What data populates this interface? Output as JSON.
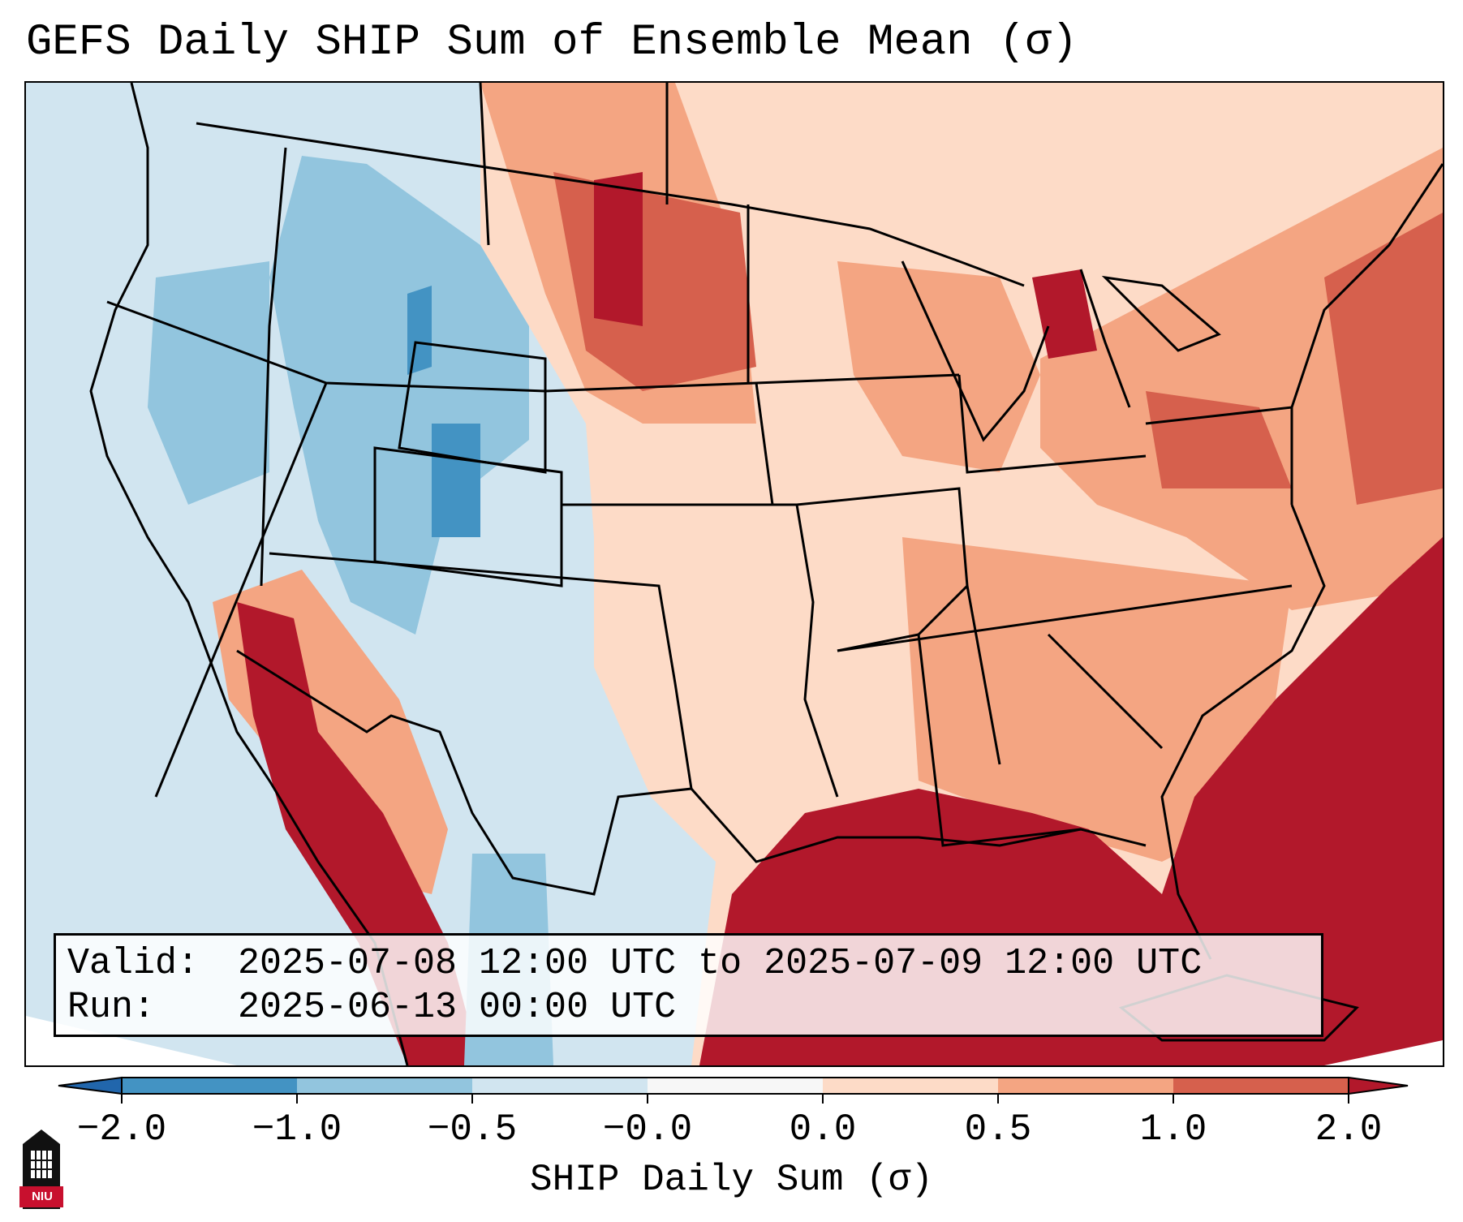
{
  "title": "GEFS Daily SHIP Sum of Ensemble Mean (σ)",
  "info": {
    "valid_label": "Valid:",
    "valid_value": "2025-07-08 12:00 UTC to 2025-07-09 12:00 UTC",
    "run_label": "Run:",
    "run_value": "2025-06-13 00:00 UTC"
  },
  "colorbar": {
    "label": "SHIP Daily Sum (σ)",
    "ticks": [
      "−2.0",
      "−1.0",
      "−0.5",
      "−0.0",
      "0.0",
      "0.5",
      "1.0",
      "2.0"
    ],
    "colors": [
      "#4393c3",
      "#92c5de",
      "#d1e5f0",
      "#f7f7f7",
      "#fddbc7",
      "#f4a582",
      "#d6604d",
      "#b2182b"
    ],
    "extend": "both"
  },
  "map": {
    "projection": "Lambert conformal (CONUS)",
    "field": "SHIP daily sum anomaly",
    "regions": [
      {
        "name": "Northwest",
        "category": "-0.5 to -0.0"
      },
      {
        "name": "Idaho / Utah / Colorado",
        "category": "-1.0 to -0.5"
      },
      {
        "name": "Texas / Southwest",
        "category": "-0.5 to -0.0"
      },
      {
        "name": "Northern Plains",
        "category": "1.0 to 2.0"
      },
      {
        "name": "Central Plains",
        "category": "0.0 to 0.5"
      },
      {
        "name": "Midwest / Great Lakes",
        "category": "0.5 to 1.0"
      },
      {
        "name": "Northeast",
        "category": "0.5 to 1.0"
      },
      {
        "name": "Southeast",
        "category": "0.5 to 1.0"
      },
      {
        "name": "Gulf of Mexico / Atlantic",
        "category": "> 2.0"
      },
      {
        "name": "Baja California / Gulf of California",
        "category": "> 2.0"
      }
    ]
  },
  "logo": {
    "text": "NIU",
    "icon": "university-tower-icon"
  }
}
